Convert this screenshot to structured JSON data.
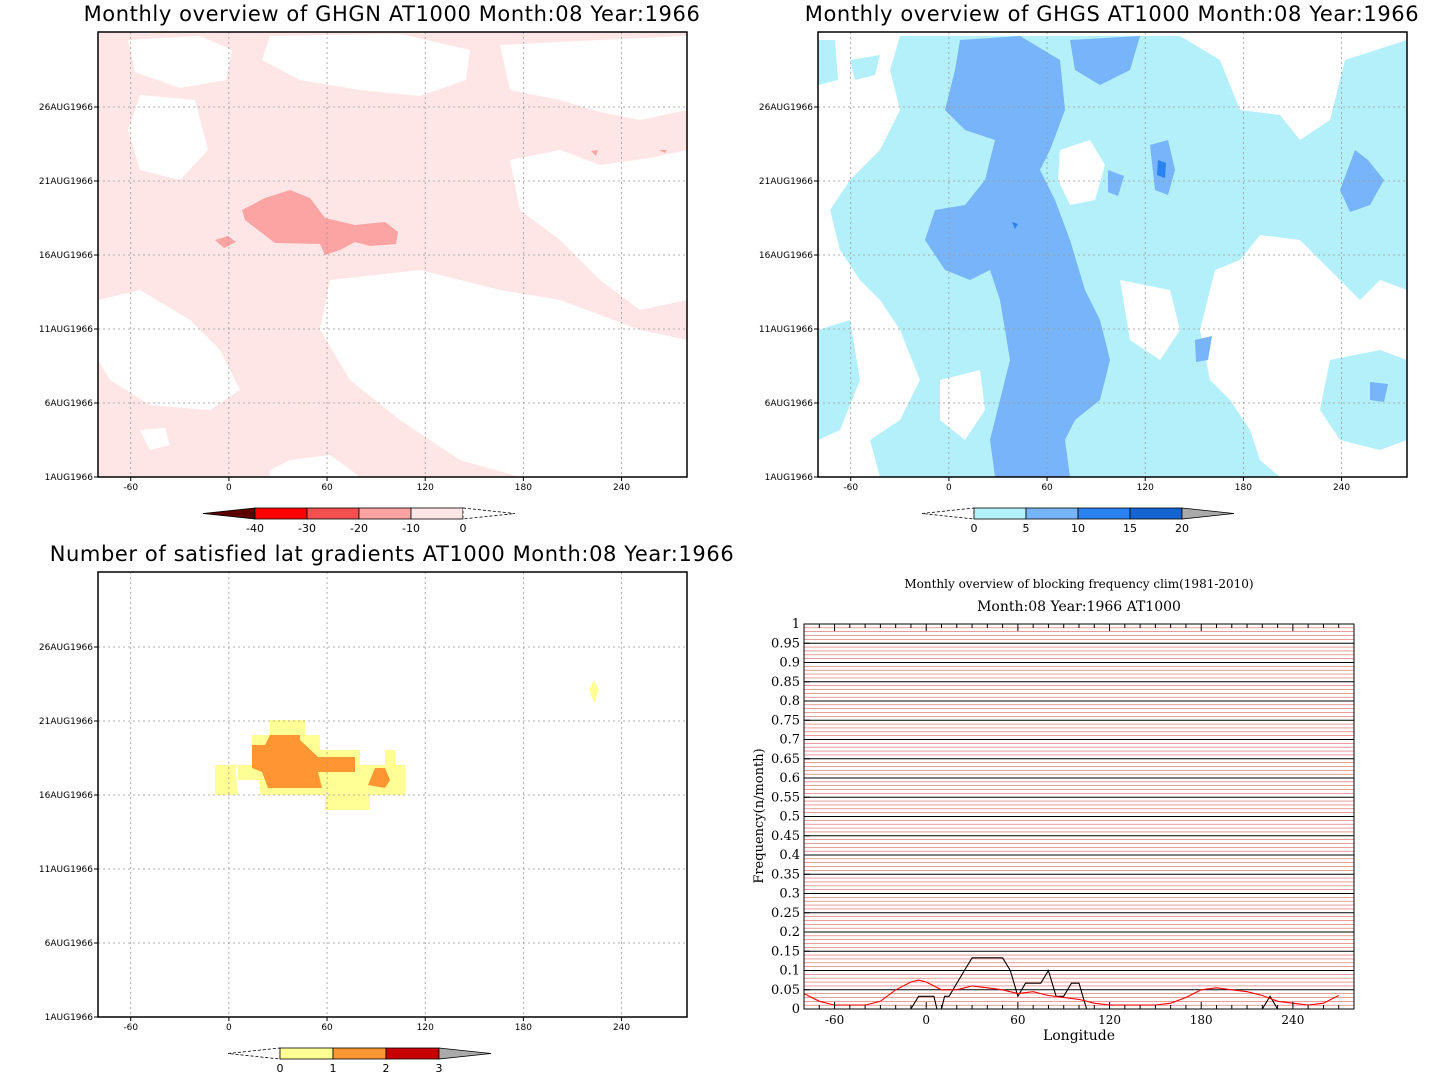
{
  "chart_data": [
    {
      "id": "ghgn",
      "type": "heatmap",
      "title": "Monthly overview of GHGN AT1000 Month:08 Year:1966",
      "x_ticks": [
        -60,
        0,
        60,
        120,
        180,
        240
      ],
      "y_ticks": [
        "1AUG1966",
        "6AUG1966",
        "11AUG1966",
        "16AUG1966",
        "21AUG1966",
        "26AUG1966"
      ],
      "xlim": [
        -80,
        280
      ],
      "colorbar": {
        "labels": [
          "-40",
          "-30",
          "-20",
          "-10",
          "0"
        ],
        "colors": [
          "#5a0000",
          "#ff0000",
          "#f45050",
          "#fca4a4",
          "#ffe6e6"
        ]
      }
    },
    {
      "id": "ghgs",
      "type": "heatmap",
      "title": "Monthly overview of GHGS AT1000 Month:08 Year:1966",
      "x_ticks": [
        -60,
        0,
        60,
        120,
        180,
        240
      ],
      "y_ticks": [
        "1AUG1966",
        "6AUG1966",
        "11AUG1966",
        "16AUG1966",
        "21AUG1966",
        "26AUG1966"
      ],
      "xlim": [
        -80,
        280
      ],
      "colorbar": {
        "labels": [
          "0",
          "5",
          "10",
          "15",
          "20"
        ],
        "colors": [
          "#b4f0fa",
          "#78b4fa",
          "#2882f0",
          "#1464d2",
          "#aaaaaa"
        ]
      }
    },
    {
      "id": "lat_gradients",
      "type": "heatmap",
      "title": "Number of satisfied lat gradients AT1000 Month:08 Year:1966",
      "x_ticks": [
        -60,
        0,
        60,
        120,
        180,
        240
      ],
      "y_ticks": [
        "1AUG1966",
        "6AUG1966",
        "11AUG1966",
        "16AUG1966",
        "21AUG1966",
        "26AUG1966"
      ],
      "xlim": [
        -80,
        280
      ],
      "colorbar": {
        "labels": [
          "0",
          "1",
          "2",
          "3"
        ],
        "colors": [
          "#ffff96",
          "#ff9632",
          "#c80000",
          "#aaaaaa"
        ]
      }
    },
    {
      "id": "blocking_freq",
      "type": "line",
      "title": "Monthly overview of blocking frequency clim(1981-2010)",
      "subtitle": "Month:08 Year:1966  AT1000",
      "xlabel": "Longitude",
      "ylabel": "Frequency(n/month)",
      "xlim": [
        -80,
        280
      ],
      "ylim": [
        0,
        1
      ],
      "x_ticks": [
        -60,
        0,
        60,
        120,
        180,
        240
      ],
      "y_ticks": [
        "0",
        "0.05",
        "0.1",
        "0.15",
        "0.2",
        "0.25",
        "0.3",
        "0.35",
        "0.4",
        "0.45",
        "0.5",
        "0.55",
        "0.6",
        "0.65",
        "0.7",
        "0.75",
        "0.8",
        "0.85",
        "0.9",
        "0.95",
        "1"
      ],
      "series": [
        {
          "color": "#000000",
          "x": [
            -75,
            -10,
            -5,
            5,
            7,
            10,
            12,
            15,
            25,
            30,
            50,
            55,
            60,
            65,
            70,
            75,
            80,
            85,
            90,
            95,
            100,
            105,
            110,
            220,
            225,
            230,
            280
          ],
          "y": [
            0,
            0,
            0.033,
            0.033,
            0,
            0,
            0.033,
            0.033,
            0.1,
            0.133,
            0.133,
            0.1,
            0.033,
            0.067,
            0.067,
            0.067,
            0.1,
            0.033,
            0.033,
            0.067,
            0.067,
            0,
            0,
            0,
            0.033,
            0,
            0
          ]
        },
        {
          "color": "#ff0000",
          "x": [
            -80,
            -70,
            -60,
            -50,
            -40,
            -30,
            -20,
            -10,
            -5,
            0,
            10,
            20,
            30,
            40,
            50,
            60,
            70,
            80,
            90,
            100,
            110,
            120,
            130,
            140,
            150,
            160,
            170,
            180,
            190,
            200,
            210,
            220,
            230,
            240,
            250,
            260,
            270
          ],
          "y": [
            0.04,
            0.02,
            0.01,
            0.01,
            0.01,
            0.02,
            0.05,
            0.07,
            0.075,
            0.07,
            0.05,
            0.05,
            0.06,
            0.055,
            0.05,
            0.04,
            0.045,
            0.035,
            0.03,
            0.025,
            0.015,
            0.01,
            0.01,
            0.01,
            0.01,
            0.015,
            0.03,
            0.05,
            0.055,
            0.05,
            0.045,
            0.035,
            0.02,
            0.015,
            0.01,
            0.015,
            0.035
          ]
        }
      ]
    }
  ]
}
